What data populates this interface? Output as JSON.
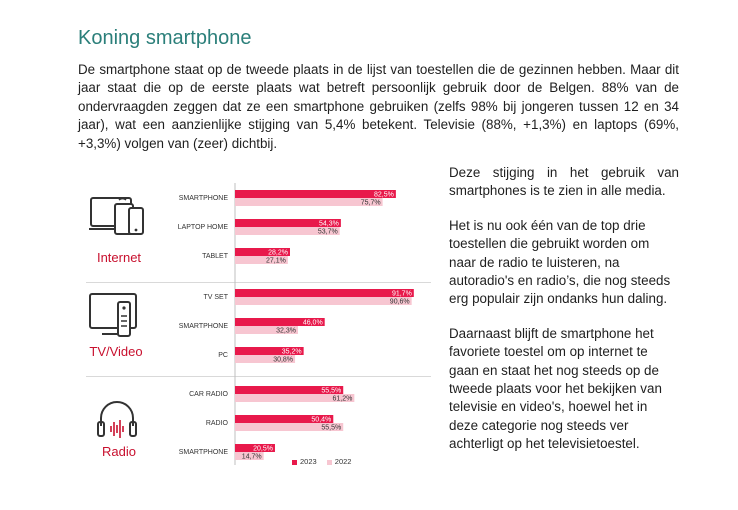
{
  "article": {
    "title": "Koning smartphone",
    "intro": "De smartphone staat op de tweede plaats in de lijst van toestellen die de gezinnen hebben. Maar dit jaar staat die op de eerste plaats wat betreft persoonlijk gebruik door de Belgen. 88% van de ondervraagden zeggen dat ze een smartphone gebruiken (zelfs 98% bij jongeren tussen 12 en 34 jaar), wat een aanzienlijke stijging van 5,4% betekent. Televisie (88%, +1,3%) en laptops (69%, +3,3%) volgen van (zeer) dichtbij.",
    "side_paragraphs": [
      "Deze stijging in het gebruik van smartphones is te zien in alle media.",
      "Het is nu ook één van de top drie toestellen die gebruikt worden om naar de radio te luisteren, na autoradio's en radio’s, die nog steeds erg populair zijn ondanks hun daling.",
      "Daarnaast blijft de smartphone het favoriete toestel om op internet te gaan en staat het nog steeds op de tweede plaats voor het bekijken van televisie en video's, hoewel het in deze categorie nog steeds ver achterligt op het televisietoestel."
    ]
  },
  "icons": {
    "internet": "devices-icon",
    "tv": "tv-remote-icon",
    "radio": "headphones-icon"
  },
  "colors": {
    "series_2023": "#e8194b",
    "series_2022": "#f7c6d1",
    "category_label": "#c8102e",
    "title": "#2b7f7a"
  },
  "chart_data": {
    "type": "bar",
    "orientation": "horizontal",
    "xlim": [
      0,
      100
    ],
    "legend": [
      "2023",
      "2022"
    ],
    "legend_position": "bottom-right",
    "groups": [
      {
        "name": "Internet",
        "categories": [
          "SMARTPHONE",
          "LAPTOP HOME",
          "TABLET"
        ],
        "series": [
          {
            "name": "2023",
            "values": [
              82.5,
              54.3,
              28.2
            ],
            "labels": [
              "82,5%",
              "54,3%",
              "28,2%"
            ]
          },
          {
            "name": "2022",
            "values": [
              75.7,
              53.7,
              27.1
            ],
            "labels": [
              "75,7%",
              "53,7%",
              "27,1%"
            ]
          }
        ]
      },
      {
        "name": "TV/Video",
        "categories": [
          "TV SET",
          "SMARTPHONE",
          "PC"
        ],
        "series": [
          {
            "name": "2023",
            "values": [
              91.7,
              46.0,
              35.2
            ],
            "labels": [
              "91,7%",
              "46,0%",
              "35,2%"
            ]
          },
          {
            "name": "2022",
            "values": [
              90.6,
              32.3,
              30.8
            ],
            "labels": [
              "90,6%",
              "32,3%",
              "30,8%"
            ]
          }
        ]
      },
      {
        "name": "Radio",
        "categories": [
          "CAR RADIO",
          "RADIO",
          "SMARTPHONE"
        ],
        "series": [
          {
            "name": "2023",
            "values": [
              55.5,
              50.4,
              20.5
            ],
            "labels": [
              "55,5%",
              "50,4%",
              "20,5%"
            ]
          },
          {
            "name": "2022",
            "values": [
              61.2,
              55.5,
              14.7
            ],
            "labels": [
              "61,2%",
              "55,5%",
              "14,7%"
            ]
          }
        ]
      }
    ]
  }
}
